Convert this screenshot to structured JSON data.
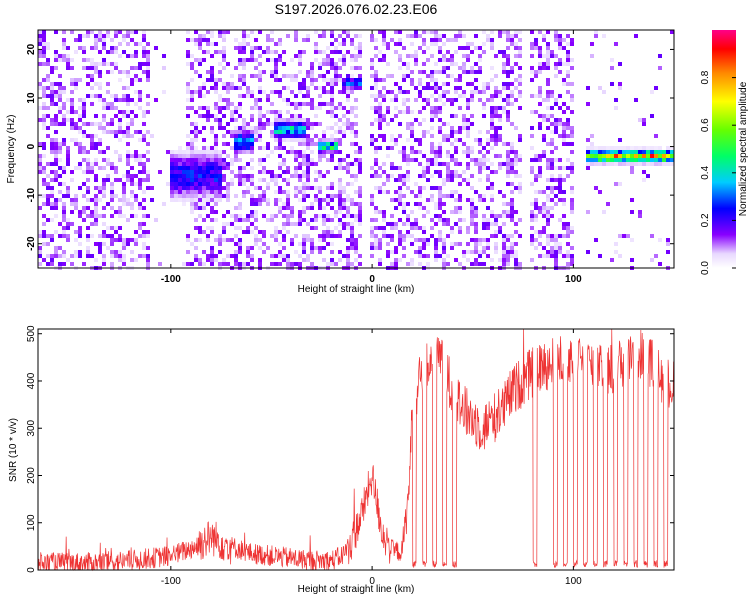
{
  "title": "S197.2026.076.02.23.E06",
  "chart_data": [
    {
      "type": "heatmap",
      "xlabel": "Height of straight line (km)",
      "ylabel": "Frequency (Hz)",
      "xlim": [
        -166,
        150
      ],
      "ylim": [
        -25,
        24
      ],
      "xticks": [
        -100,
        0,
        100
      ],
      "yticks": [
        -20,
        -10,
        0,
        10,
        20
      ],
      "xtick_labels": [
        "-100",
        "0",
        "100"
      ],
      "ytick_labels": [
        "-20",
        "-10",
        "0",
        "10",
        "20"
      ],
      "colorbar": {
        "label": "Normalized spectral amplitude",
        "range": [
          0,
          1
        ],
        "ticks": [
          0,
          0.2,
          0.4,
          0.6,
          0.8
        ],
        "tick_labels": [
          "0.0",
          "0.2",
          "0.4",
          "0.6",
          "0.8"
        ]
      },
      "features": [
        {
          "x_range": [
            -100,
            -75
          ],
          "freq_center": -6,
          "freq_spread": 4,
          "amplitude": 0.3
        },
        {
          "x_range": [
            -68,
            -58
          ],
          "freq_center": 1,
          "freq_spread": 2,
          "amplitude": 0.4
        },
        {
          "x_range": [
            -48,
            -32
          ],
          "freq_center": 3.5,
          "freq_spread": 1.5,
          "amplitude": 0.5
        },
        {
          "x_range": [
            -26,
            -16
          ],
          "freq_center": 0,
          "freq_spread": 1,
          "amplitude": 0.6
        },
        {
          "x_range": [
            -15,
            -5
          ],
          "freq_center": 13,
          "freq_spread": 1,
          "amplitude": 0.4
        },
        {
          "x_range": [
            107,
            150
          ],
          "freq_center": -2,
          "freq_spread": 1,
          "amplitude": 0.95
        }
      ]
    },
    {
      "type": "line",
      "xlabel": "Height of straight line (km)",
      "ylabel": "SNR (10 * v/v)",
      "xlim": [
        -166,
        150
      ],
      "ylim": [
        0,
        510
      ],
      "xticks": [
        -100,
        0,
        100
      ],
      "yticks": [
        0,
        100,
        200,
        300,
        400,
        500
      ],
      "xtick_labels": [
        "-100",
        "0",
        "100"
      ],
      "ytick_labels": [
        "0",
        "100",
        "200",
        "300",
        "400",
        "500"
      ],
      "color": "#ee3333",
      "x": [
        -166,
        -140,
        -120,
        -100,
        -90,
        -80,
        -70,
        -60,
        -50,
        -40,
        -30,
        -20,
        -15,
        -10,
        -5,
        0,
        5,
        10,
        15,
        18,
        20,
        22,
        25,
        30,
        35,
        40,
        45,
        50,
        55,
        60,
        65,
        70,
        75,
        80,
        85,
        90,
        95,
        100,
        105,
        110,
        115,
        120,
        125,
        130,
        135,
        140,
        145,
        150
      ],
      "values": [
        15,
        15,
        20,
        30,
        45,
        70,
        50,
        35,
        30,
        25,
        20,
        20,
        30,
        60,
        120,
        200,
        80,
        40,
        40,
        150,
        330,
        380,
        420,
        440,
        440,
        380,
        340,
        320,
        300,
        320,
        340,
        380,
        400,
        420,
        430,
        440,
        450,
        450,
        440,
        430,
        420,
        430,
        440,
        450,
        460,
        430,
        400,
        390
      ],
      "dropouts": [
        [
          20,
          22
        ],
        [
          25,
          27
        ],
        [
          30,
          32
        ],
        [
          35,
          37
        ],
        [
          40,
          42
        ],
        [
          80,
          82
        ],
        [
          90,
          92
        ],
        [
          95,
          97
        ],
        [
          100,
          102
        ],
        [
          105,
          107
        ],
        [
          110,
          112
        ],
        [
          115,
          117
        ],
        [
          120,
          122
        ],
        [
          125,
          127
        ],
        [
          130,
          132
        ],
        [
          135,
          137
        ],
        [
          140,
          142
        ],
        [
          145,
          147
        ]
      ],
      "noise_amplitude": 25
    }
  ]
}
